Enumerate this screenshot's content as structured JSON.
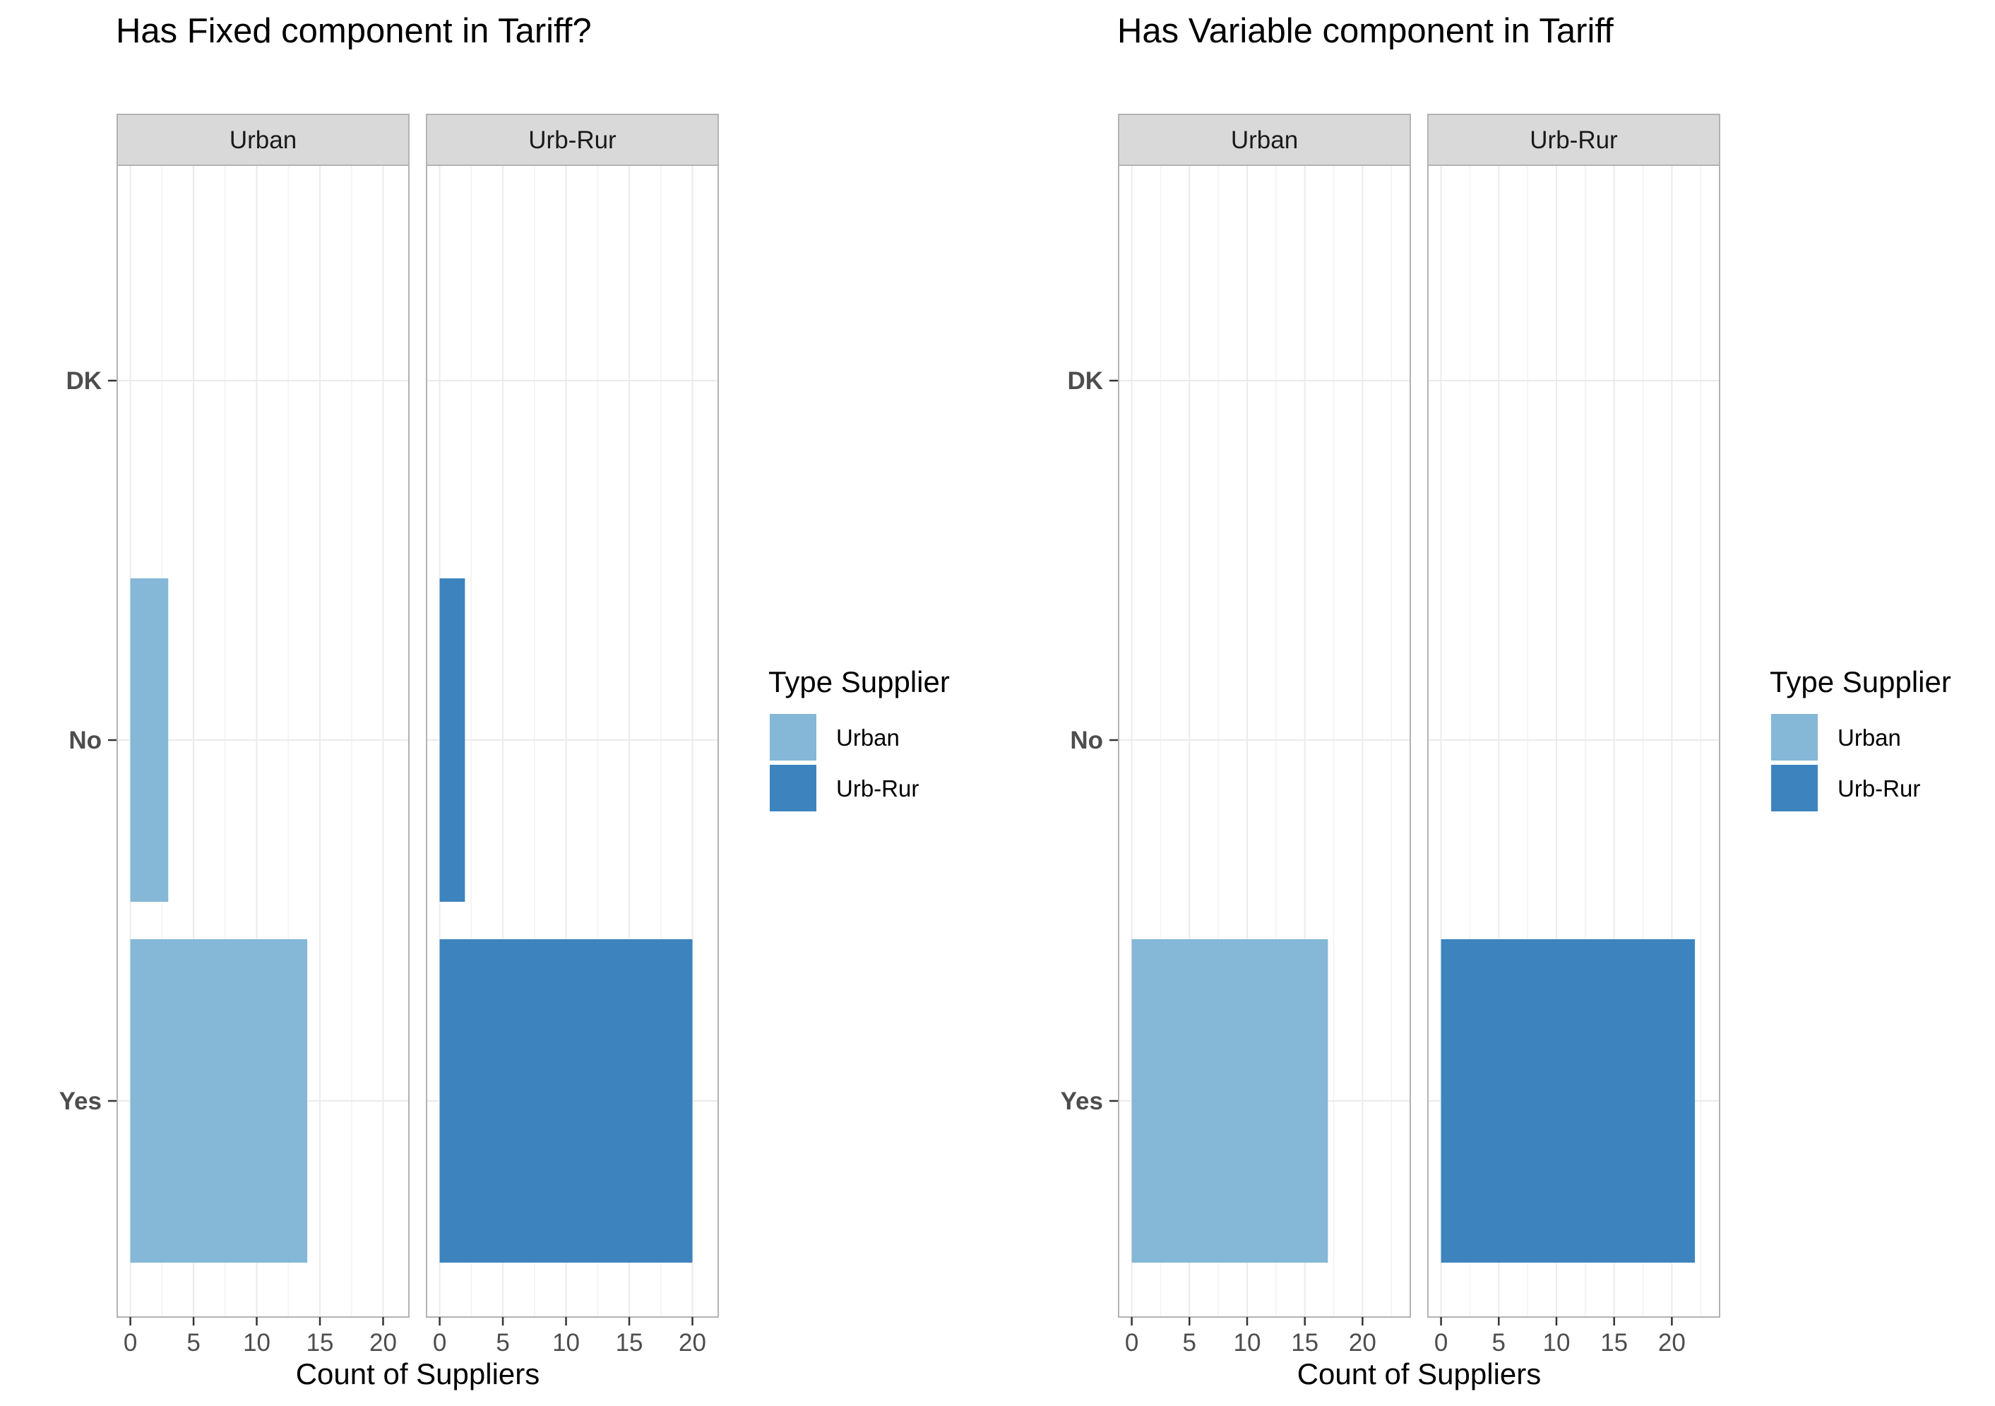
{
  "chart_data": [
    {
      "type": "bar",
      "orientation": "horizontal",
      "title": "Has Fixed component in Tariff?",
      "xlabel": "Count of Suppliers",
      "ylabel": "",
      "categories": [
        "DK",
        "No",
        "Yes"
      ],
      "xlim": [
        0,
        21
      ],
      "x_ticks": [
        "0",
        "5",
        "10",
        "15",
        "20"
      ],
      "legend": {
        "title": "Type Supplier",
        "placement": "right",
        "entries": [
          {
            "label": "Urban",
            "color": "#85B7D6"
          },
          {
            "label": "Urb-Rur",
            "color": "#3D84BF"
          }
        ]
      },
      "facets": [
        {
          "label": "Urban",
          "color": "#85B7D6",
          "values": [
            0,
            3,
            14
          ]
        },
        {
          "label": "Urb-Rur",
          "color": "#3D84BF",
          "values": [
            0,
            2,
            20
          ]
        }
      ],
      "grid": true
    },
    {
      "type": "bar",
      "orientation": "horizontal",
      "title": "Has Variable component in Tariff",
      "xlabel": "Count of Suppliers",
      "ylabel": "",
      "categories": [
        "DK",
        "No",
        "Yes"
      ],
      "xlim": [
        0,
        23
      ],
      "x_ticks": [
        "0",
        "5",
        "10",
        "15",
        "20"
      ],
      "legend": {
        "title": "Type Supplier",
        "placement": "right",
        "entries": [
          {
            "label": "Urban",
            "color": "#85B7D6"
          },
          {
            "label": "Urb-Rur",
            "color": "#3D84BF"
          }
        ]
      },
      "facets": [
        {
          "label": "Urban",
          "color": "#85B7D6",
          "values": [
            0,
            0,
            17
          ]
        },
        {
          "label": "Urb-Rur",
          "color": "#3D84BF",
          "values": [
            0,
            0,
            22
          ]
        }
      ],
      "grid": true
    }
  ]
}
